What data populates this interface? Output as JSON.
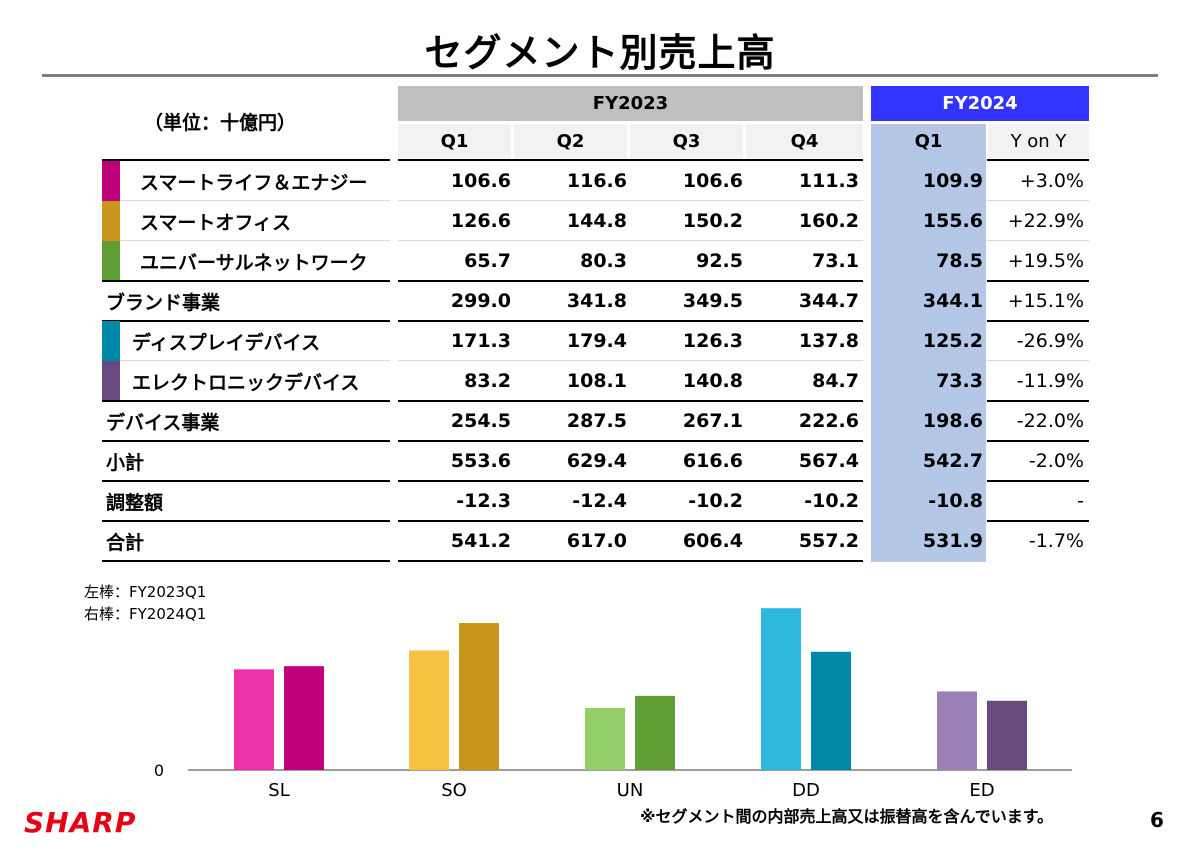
{
  "title": "セグメント別売上高",
  "unit_label": "（単位：十億円）",
  "table": {
    "fy2023_label": "FY2023",
    "fy2024_label": "FY2024",
    "quarter_labels": [
      "Q1",
      "Q2",
      "Q3",
      "Q4"
    ],
    "fy2024_quarter_label": "Q1",
    "yoy_label": "Y on Y",
    "rows": [
      {
        "label": "スマートライフ＆エナジー",
        "swatch": "#c0007a",
        "values": [
          "106.6",
          "116.6",
          "106.6",
          "111.3",
          "109.9"
        ],
        "yoy": "+3.0%"
      },
      {
        "label": "スマートオフィス",
        "swatch": "#c8961a",
        "values": [
          "126.6",
          "144.8",
          "150.2",
          "160.2",
          "155.6"
        ],
        "yoy": "+22.9%"
      },
      {
        "label": "ユニバーサルネットワーク",
        "swatch": "#5e9e34",
        "values": [
          "65.7",
          "80.3",
          "92.5",
          "73.1",
          "78.5"
        ],
        "yoy": "+19.5%"
      },
      {
        "label": "ブランド事業",
        "values": [
          "299.0",
          "341.8",
          "349.5",
          "344.7",
          "344.1"
        ],
        "yoy": "+15.1%"
      },
      {
        "label": "ディスプレイデバイス",
        "swatch": "#0088a8",
        "values": [
          "171.3",
          "179.4",
          "126.3",
          "137.8",
          "125.2"
        ],
        "yoy": "-26.9%"
      },
      {
        "label": "エレクトロニックデバイス",
        "swatch": "#6a4a7e",
        "values": [
          "83.2",
          "108.1",
          "140.8",
          "84.7",
          "73.3"
        ],
        "yoy": "-11.9%"
      },
      {
        "label": "デバイス事業",
        "values": [
          "254.5",
          "287.5",
          "267.1",
          "222.6",
          "198.6"
        ],
        "yoy": "-22.0%"
      },
      {
        "label": "小計",
        "values": [
          "553.6",
          "629.4",
          "616.6",
          "567.4",
          "542.7"
        ],
        "yoy": "-2.0%"
      },
      {
        "label": "調整額",
        "values": [
          "-12.3",
          "-12.4",
          "-10.2",
          "-10.2",
          "-10.8"
        ],
        "yoy": "-"
      },
      {
        "label": "合計",
        "values": [
          "541.2",
          "617.0",
          "606.4",
          "557.2",
          "531.9"
        ],
        "yoy": "-1.7%"
      }
    ]
  },
  "legend": {
    "left": "左棒：FY2023Q1",
    "right": "右棒：FY2024Q1"
  },
  "chart_data": {
    "type": "bar",
    "categories": [
      "SL",
      "SO",
      "UN",
      "DD",
      "ED"
    ],
    "series": [
      {
        "values": [
          106.6,
          126.6,
          65.7,
          171.3,
          83.2
        ],
        "colors": [
          "#ee33aa",
          "#f5c242",
          "#92cf68",
          "#2eb8db",
          "#9b7fb5"
        ]
      },
      {
        "values": [
          109.9,
          155.6,
          78.5,
          125.2,
          73.3
        ],
        "colors": [
          "#c0007a",
          "#c8961a",
          "#5e9e34",
          "#0088a8",
          "#6a4a7e"
        ]
      }
    ],
    "ylim": [
      0,
      180
    ],
    "y_tick_label": "0",
    "grid": false,
    "legend_position": "top-left"
  },
  "footnote": "※セグメント間の内部売上高又は振替高を含んでいます。",
  "logo_text": "SHARP",
  "page_number": "6"
}
